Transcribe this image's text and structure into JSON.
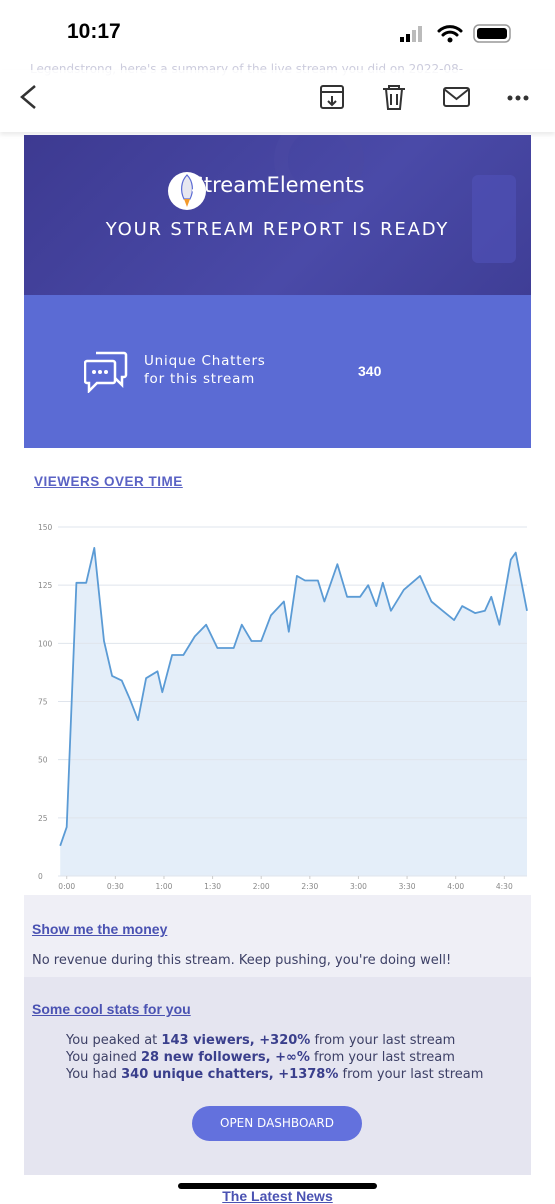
{
  "status_bar": {
    "time": "10:17"
  },
  "email_preview": {
    "line": "Legendstrong, here's a summary of the live stream you did on 2022-08-"
  },
  "banner": {
    "brand": "StreamElements",
    "headline": "YOUR STREAM REPORT IS READY"
  },
  "chatters": {
    "label_line_1": "Unique Chatters",
    "label_line_2": "for this stream",
    "value": 340
  },
  "chart_data": {
    "type": "line",
    "title": "VIEWERS OVER TIME",
    "x": [
      -4,
      0,
      6,
      12,
      17,
      23,
      28,
      34,
      39,
      44,
      49,
      56,
      59,
      65,
      72,
      79,
      86,
      93,
      103,
      108,
      114,
      120,
      126,
      134,
      137,
      142,
      147,
      155,
      159,
      167,
      173,
      181,
      186,
      191,
      195,
      200,
      208,
      218,
      225,
      232,
      239,
      244,
      252,
      258,
      262,
      267,
      274,
      277,
      284
    ],
    "series": [
      {
        "color": "#5b9bd5",
        "fill": "#e4eef9",
        "values": [
          13,
          21,
          126,
          126,
          141,
          101,
          86,
          84,
          76,
          67,
          85,
          88,
          79,
          95,
          95,
          103,
          108,
          98,
          98,
          108,
          101,
          101,
          112,
          118,
          105,
          129,
          127,
          127,
          118,
          134,
          120,
          120,
          125,
          116,
          126,
          114,
          123,
          129,
          118,
          114,
          110,
          116,
          113,
          114,
          120,
          108,
          136,
          139,
          114
        ]
      }
    ],
    "xlim": [
      -6,
      284
    ],
    "ylim": [
      0,
      150
    ],
    "xticks": [
      {
        "value": 0,
        "label": "0:00"
      },
      {
        "value": 30,
        "label": "0:30"
      },
      {
        "value": 60,
        "label": "1:00"
      },
      {
        "value": 90,
        "label": "1:30"
      },
      {
        "value": 120,
        "label": "2:00"
      },
      {
        "value": 150,
        "label": "2:30"
      },
      {
        "value": 180,
        "label": "3:00"
      },
      {
        "value": 210,
        "label": "3:30"
      },
      {
        "value": 240,
        "label": "4:00"
      },
      {
        "value": 270,
        "label": "4:30"
      }
    ],
    "yticks": [
      0,
      25,
      50,
      75,
      100,
      125,
      150
    ],
    "grid": true
  },
  "money": {
    "title": "Show me the money",
    "text": "No revenue during this stream. Keep pushing, you're doing well!"
  },
  "stats": {
    "title": "Some cool stats for you",
    "lines": [
      [
        {
          "text": "You peaked at ",
          "bold": false
        },
        {
          "text": "143 viewers, +320%",
          "bold": true
        },
        {
          "text": " from your last stream",
          "bold": false
        }
      ],
      [
        {
          "text": "You gained ",
          "bold": false
        },
        {
          "text": "28 new followers, +∞%",
          "bold": true
        },
        {
          "text": " from your last stream",
          "bold": false
        }
      ],
      [
        {
          "text": "You had ",
          "bold": false
        },
        {
          "text": "340 unique chatters, +1378%",
          "bold": true
        },
        {
          "text": " from your last stream",
          "bold": false
        }
      ]
    ],
    "button": "OPEN DASHBOARD"
  },
  "footer": {
    "next_title": "The Latest News"
  }
}
